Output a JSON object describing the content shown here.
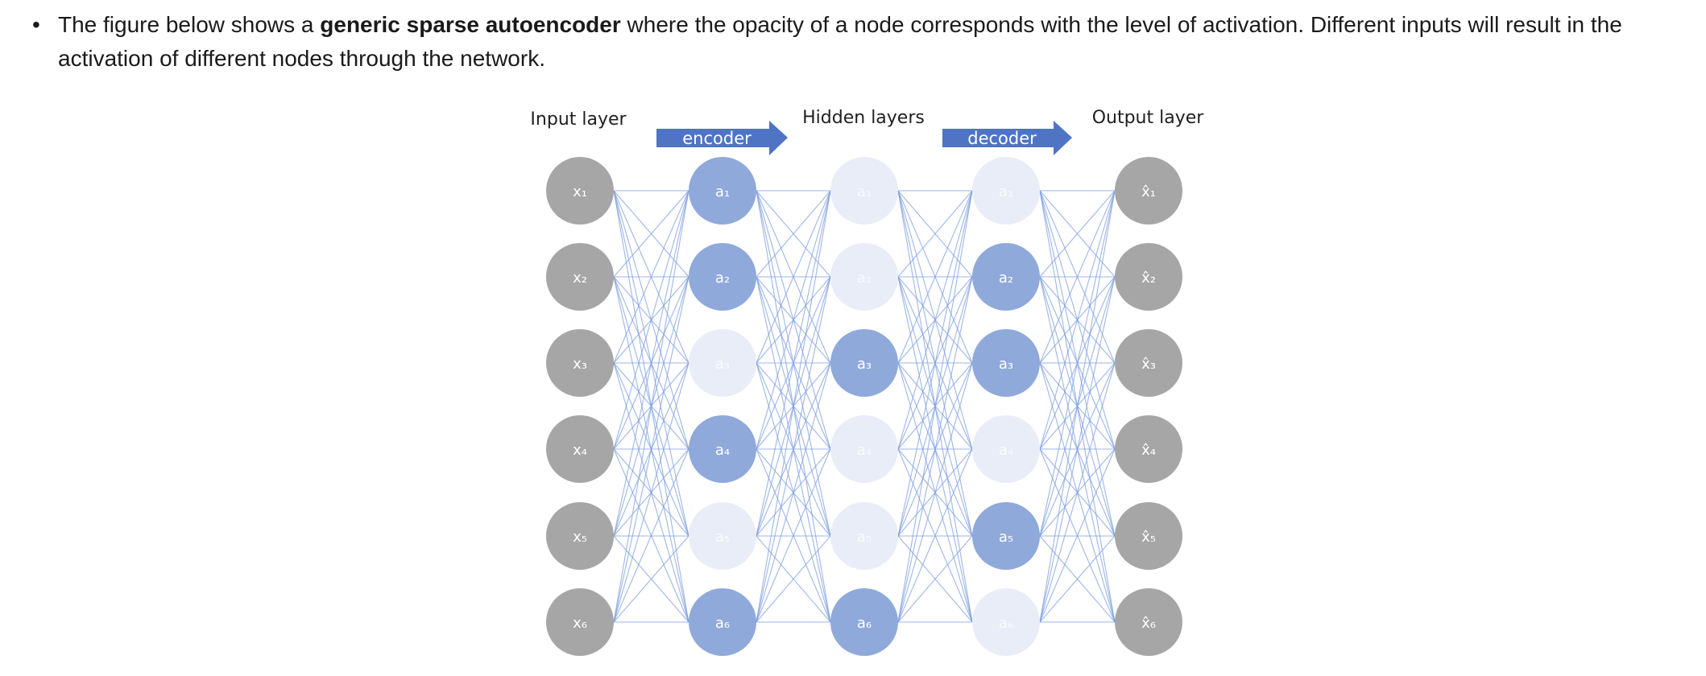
{
  "paragraph": {
    "bullet": "•",
    "text_before": "The figure below shows a ",
    "bold": "generic sparse autoencoder",
    "text_after": " where the opacity of a node corresponds with the level of activation. Different inputs will result in the activation of different nodes through the network."
  },
  "figure": {
    "labels": {
      "input": "Input layer",
      "hidden": "Hidden layers",
      "output": "Output layer",
      "encoder": "encoder",
      "decoder": "decoder"
    },
    "colors": {
      "input_node": "#a6a6a6",
      "active_node": "#8fa9db",
      "inactive_node": "#e8edf7",
      "arrow": "#4f74c4",
      "connection": "#7d9de0"
    },
    "layers": [
      {
        "name": "input",
        "nodes": [
          {
            "label": "x₁",
            "state": "input"
          },
          {
            "label": "x₂",
            "state": "input"
          },
          {
            "label": "x₃",
            "state": "input"
          },
          {
            "label": "x₄",
            "state": "input"
          },
          {
            "label": "x₅",
            "state": "input"
          },
          {
            "label": "x₆",
            "state": "input"
          }
        ]
      },
      {
        "name": "hidden-1",
        "nodes": [
          {
            "label": "a₁",
            "state": "active"
          },
          {
            "label": "a₂",
            "state": "active"
          },
          {
            "label": "a₃",
            "state": "inactive"
          },
          {
            "label": "a₄",
            "state": "active"
          },
          {
            "label": "a₅",
            "state": "inactive"
          },
          {
            "label": "a₆",
            "state": "active"
          }
        ]
      },
      {
        "name": "hidden-2",
        "nodes": [
          {
            "label": "a₁",
            "state": "inactive"
          },
          {
            "label": "a₂",
            "state": "inactive"
          },
          {
            "label": "a₃",
            "state": "active"
          },
          {
            "label": "a₄",
            "state": "inactive"
          },
          {
            "label": "a₅",
            "state": "inactive"
          },
          {
            "label": "a₆",
            "state": "active"
          }
        ]
      },
      {
        "name": "hidden-3",
        "nodes": [
          {
            "label": "a₁",
            "state": "inactive"
          },
          {
            "label": "a₂",
            "state": "active"
          },
          {
            "label": "a₃",
            "state": "active"
          },
          {
            "label": "a₄",
            "state": "inactive"
          },
          {
            "label": "a₅",
            "state": "active"
          },
          {
            "label": "a₆",
            "state": "inactive"
          }
        ]
      },
      {
        "name": "output",
        "nodes": [
          {
            "label": "x̂₁",
            "state": "input"
          },
          {
            "label": "x̂₂",
            "state": "input"
          },
          {
            "label": "x̂₃",
            "state": "input"
          },
          {
            "label": "x̂₄",
            "state": "input"
          },
          {
            "label": "x̂₅",
            "state": "input"
          },
          {
            "label": "x̂₆",
            "state": "input"
          }
        ]
      }
    ]
  }
}
